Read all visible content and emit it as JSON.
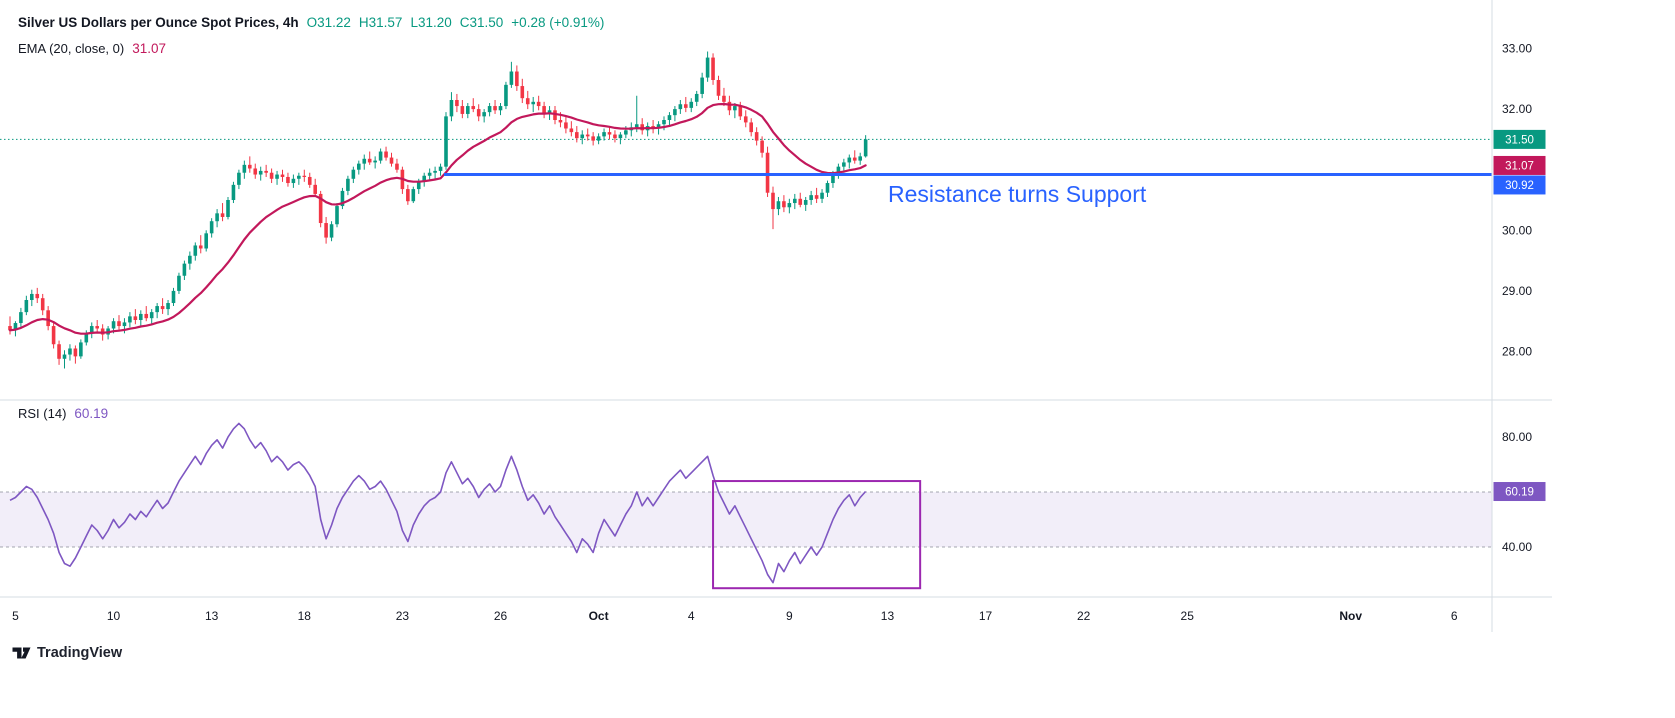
{
  "header": {
    "symbol_title": "Silver US Dollars per Ounce Spot Prices, 4h",
    "open": "O31.22",
    "high": "H31.57",
    "low": "L31.20",
    "close": "C31.50",
    "change": "+0.28 (+0.91%)",
    "ema_label": "EMA (20, close, 0)",
    "ema_value": "31.07"
  },
  "rsi_header": {
    "label": "RSI (14)",
    "value": "60.19"
  },
  "annotation": {
    "text": "Resistance turns Support",
    "color": "#2962ff"
  },
  "badges": {
    "last_price": "31.50",
    "ema": "31.07",
    "support": "30.92",
    "rsi": "60.19"
  },
  "footer": {
    "brand": "TradingView"
  },
  "colors": {
    "up": "#089981",
    "down": "#f23645",
    "ema": "#c2185b",
    "support": "#2962ff",
    "rsi": "#7e57c2",
    "rsi_box": "#9c27b0",
    "band_fill": "rgba(126,87,194,0.10)",
    "band_line": "#787b86",
    "axis_text": "#131722",
    "divider": "#d6dce3",
    "badge_text": "#ffffff"
  },
  "chart_data": [
    {
      "type": "candlestick",
      "name": "Silver US Dollars per Ounce Spot Prices, 4h",
      "timeframe": "4h",
      "last": {
        "open": 31.22,
        "high": 31.57,
        "low": 31.2,
        "close": 31.5,
        "change": 0.28,
        "change_pct": 0.91
      },
      "ylim": [
        27.2,
        33.8
      ],
      "y_ticks": [
        33,
        32,
        30,
        29,
        28
      ],
      "grid": false,
      "ema": {
        "label": "EMA (20, close, 0)",
        "period": 20,
        "value": 31.07
      },
      "support_line": {
        "price": 30.92,
        "start_index": 80,
        "label": "Resistance turns Support"
      },
      "last_price_line": {
        "price": 31.5
      },
      "x_labels": [
        {
          "t": "5",
          "i": 1
        },
        {
          "t": "10",
          "i": 19
        },
        {
          "t": "13",
          "i": 37
        },
        {
          "t": "18",
          "i": 54
        },
        {
          "t": "23",
          "i": 72
        },
        {
          "t": "26",
          "i": 90
        },
        {
          "t": "Oct",
          "i": 108,
          "b": 1
        },
        {
          "t": "4",
          "i": 125
        },
        {
          "t": "9",
          "i": 143
        },
        {
          "t": "13",
          "i": 161
        },
        {
          "t": "17",
          "i": 179
        },
        {
          "t": "22",
          "i": 197
        },
        {
          "t": "25",
          "i": 216
        },
        {
          "t": "Nov",
          "i": 246,
          "b": 1
        },
        {
          "t": "6",
          "i": 265
        }
      ],
      "candles": [
        [
          28.42,
          28.58,
          28.28,
          28.35
        ],
        [
          28.35,
          28.5,
          28.25,
          28.47
        ],
        [
          28.47,
          28.72,
          28.4,
          28.65
        ],
        [
          28.65,
          28.92,
          28.6,
          28.85
        ],
        [
          28.85,
          29.02,
          28.75,
          28.95
        ],
        [
          28.95,
          29.05,
          28.8,
          28.88
        ],
        [
          28.88,
          28.95,
          28.6,
          28.68
        ],
        [
          28.68,
          28.75,
          28.35,
          28.42
        ],
        [
          28.42,
          28.48,
          28.05,
          28.12
        ],
        [
          28.12,
          28.18,
          27.78,
          27.88
        ],
        [
          27.88,
          28.02,
          27.72,
          27.95
        ],
        [
          27.95,
          28.12,
          27.85,
          28.05
        ],
        [
          28.05,
          28.1,
          27.8,
          27.92
        ],
        [
          27.92,
          28.2,
          27.88,
          28.15
        ],
        [
          28.15,
          28.35,
          28.1,
          28.3
        ],
        [
          28.3,
          28.48,
          28.22,
          28.42
        ],
        [
          28.42,
          28.52,
          28.3,
          28.38
        ],
        [
          28.38,
          28.45,
          28.18,
          28.28
        ],
        [
          28.28,
          28.42,
          28.2,
          28.38
        ],
        [
          28.38,
          28.55,
          28.3,
          28.5
        ],
        [
          28.5,
          28.6,
          28.35,
          28.42
        ],
        [
          28.42,
          28.55,
          28.3,
          28.48
        ],
        [
          28.48,
          28.65,
          28.4,
          28.58
        ],
        [
          28.58,
          28.7,
          28.45,
          28.52
        ],
        [
          28.52,
          28.68,
          28.42,
          28.62
        ],
        [
          28.62,
          28.75,
          28.5,
          28.55
        ],
        [
          28.55,
          28.7,
          28.45,
          28.65
        ],
        [
          28.65,
          28.8,
          28.55,
          28.75
        ],
        [
          28.75,
          28.88,
          28.62,
          28.7
        ],
        [
          28.7,
          28.85,
          28.6,
          28.8
        ],
        [
          28.8,
          29.05,
          28.75,
          29.0
        ],
        [
          29.0,
          29.3,
          28.95,
          29.25
        ],
        [
          29.25,
          29.5,
          29.18,
          29.45
        ],
        [
          29.45,
          29.65,
          29.35,
          29.58
        ],
        [
          29.58,
          29.8,
          29.5,
          29.75
        ],
        [
          29.75,
          29.92,
          29.62,
          29.7
        ],
        [
          29.7,
          30.0,
          29.65,
          29.95
        ],
        [
          29.95,
          30.2,
          29.88,
          30.15
        ],
        [
          30.15,
          30.35,
          30.05,
          30.28
        ],
        [
          30.28,
          30.45,
          30.15,
          30.22
        ],
        [
          30.22,
          30.55,
          30.18,
          30.5
        ],
        [
          30.5,
          30.8,
          30.45,
          30.75
        ],
        [
          30.75,
          31.0,
          30.68,
          30.95
        ],
        [
          30.95,
          31.15,
          30.85,
          31.08
        ],
        [
          31.08,
          31.22,
          30.95,
          31.02
        ],
        [
          31.02,
          31.1,
          30.85,
          30.92
        ],
        [
          30.92,
          31.05,
          30.82,
          30.98
        ],
        [
          30.98,
          31.08,
          30.88,
          30.95
        ],
        [
          30.95,
          31.02,
          30.78,
          30.85
        ],
        [
          30.85,
          30.98,
          30.75,
          30.92
        ],
        [
          30.92,
          31.0,
          30.8,
          30.88
        ],
        [
          30.88,
          30.95,
          30.72,
          30.78
        ],
        [
          30.78,
          30.92,
          30.7,
          30.85
        ],
        [
          30.85,
          30.95,
          30.75,
          30.9
        ],
        [
          30.9,
          31.0,
          30.8,
          30.88
        ],
        [
          30.88,
          30.95,
          30.7,
          30.75
        ],
        [
          30.75,
          30.85,
          30.55,
          30.6
        ],
        [
          30.6,
          30.65,
          30.05,
          30.12
        ],
        [
          30.12,
          30.22,
          29.78,
          29.88
        ],
        [
          29.88,
          30.15,
          29.82,
          30.1
        ],
        [
          30.1,
          30.45,
          30.05,
          30.4
        ],
        [
          30.4,
          30.7,
          30.35,
          30.65
        ],
        [
          30.65,
          30.9,
          30.58,
          30.85
        ],
        [
          30.85,
          31.05,
          30.78,
          31.0
        ],
        [
          31.0,
          31.15,
          30.92,
          31.1
        ],
        [
          31.1,
          31.25,
          31.0,
          31.18
        ],
        [
          31.18,
          31.3,
          31.08,
          31.12
        ],
        [
          31.12,
          31.22,
          31.02,
          31.15
        ],
        [
          31.15,
          31.35,
          31.1,
          31.3
        ],
        [
          31.3,
          31.38,
          31.15,
          31.2
        ],
        [
          31.2,
          31.28,
          31.05,
          31.1
        ],
        [
          31.1,
          31.18,
          30.95,
          31.0
        ],
        [
          31.0,
          31.05,
          30.6,
          30.68
        ],
        [
          30.68,
          30.75,
          30.42,
          30.48
        ],
        [
          30.48,
          30.72,
          30.45,
          30.68
        ],
        [
          30.68,
          30.85,
          30.6,
          30.8
        ],
        [
          30.8,
          30.95,
          30.72,
          30.9
        ],
        [
          30.9,
          31.02,
          30.82,
          30.95
        ],
        [
          30.95,
          31.05,
          30.85,
          30.98
        ],
        [
          30.98,
          31.1,
          30.9,
          31.05
        ],
        [
          31.05,
          31.95,
          31.0,
          31.88
        ],
        [
          31.88,
          32.28,
          31.8,
          32.15
        ],
        [
          32.15,
          32.25,
          31.95,
          32.05
        ],
        [
          32.05,
          32.15,
          31.85,
          31.92
        ],
        [
          31.92,
          32.1,
          31.85,
          32.05
        ],
        [
          32.05,
          32.18,
          31.95,
          32.0
        ],
        [
          32.0,
          32.08,
          31.8,
          31.88
        ],
        [
          31.88,
          32.0,
          31.78,
          31.95
        ],
        [
          31.95,
          32.1,
          31.88,
          32.05
        ],
        [
          32.05,
          32.15,
          31.92,
          31.98
        ],
        [
          31.98,
          32.1,
          31.9,
          32.05
        ],
        [
          32.05,
          32.45,
          32.0,
          32.4
        ],
        [
          32.4,
          32.78,
          32.35,
          32.62
        ],
        [
          32.62,
          32.72,
          32.3,
          32.38
        ],
        [
          32.38,
          32.5,
          32.1,
          32.18
        ],
        [
          32.18,
          32.3,
          32.0,
          32.08
        ],
        [
          32.08,
          32.2,
          31.95,
          32.12
        ],
        [
          32.12,
          32.22,
          31.98,
          32.05
        ],
        [
          32.05,
          32.12,
          31.85,
          31.92
        ],
        [
          31.92,
          32.05,
          31.82,
          31.98
        ],
        [
          31.98,
          32.05,
          31.75,
          31.82
        ],
        [
          31.82,
          31.95,
          31.7,
          31.78
        ],
        [
          31.78,
          31.88,
          31.6,
          31.68
        ],
        [
          31.68,
          31.8,
          31.55,
          31.62
        ],
        [
          31.62,
          31.72,
          31.45,
          31.52
        ],
        [
          31.52,
          31.65,
          31.42,
          31.58
        ],
        [
          31.58,
          31.68,
          31.48,
          31.55
        ],
        [
          31.55,
          31.62,
          31.4,
          31.48
        ],
        [
          31.48,
          31.6,
          31.42,
          31.55
        ],
        [
          31.55,
          31.68,
          31.48,
          31.62
        ],
        [
          31.62,
          31.7,
          31.5,
          31.58
        ],
        [
          31.58,
          31.65,
          31.45,
          31.52
        ],
        [
          31.52,
          31.62,
          31.42,
          31.58
        ],
        [
          31.58,
          31.72,
          31.52,
          31.65
        ],
        [
          31.65,
          31.78,
          31.55,
          31.7
        ],
        [
          31.7,
          32.22,
          31.62,
          31.75
        ],
        [
          31.75,
          31.85,
          31.58,
          31.65
        ],
        [
          31.65,
          31.78,
          31.55,
          31.72
        ],
        [
          31.72,
          31.82,
          31.6,
          31.68
        ],
        [
          31.68,
          31.8,
          31.58,
          31.75
        ],
        [
          31.75,
          31.88,
          31.65,
          31.82
        ],
        [
          31.82,
          31.95,
          31.72,
          31.9
        ],
        [
          31.9,
          32.05,
          31.8,
          32.0
        ],
        [
          32.0,
          32.15,
          31.92,
          32.08
        ],
        [
          32.08,
          32.2,
          31.95,
          32.02
        ],
        [
          32.02,
          32.18,
          31.95,
          32.12
        ],
        [
          32.12,
          32.3,
          32.05,
          32.25
        ],
        [
          32.25,
          32.6,
          32.18,
          32.52
        ],
        [
          32.52,
          32.95,
          32.45,
          32.85
        ],
        [
          32.85,
          32.92,
          32.4,
          32.48
        ],
        [
          32.48,
          32.55,
          32.15,
          32.22
        ],
        [
          32.22,
          32.35,
          32.05,
          32.12
        ],
        [
          32.12,
          32.22,
          31.9,
          31.98
        ],
        [
          31.98,
          32.1,
          31.85,
          32.05
        ],
        [
          32.05,
          32.12,
          31.82,
          31.88
        ],
        [
          31.88,
          31.98,
          31.7,
          31.78
        ],
        [
          31.78,
          31.85,
          31.55,
          31.62
        ],
        [
          31.62,
          31.7,
          31.4,
          31.48
        ],
        [
          31.48,
          31.55,
          31.2,
          31.28
        ],
        [
          31.28,
          31.38,
          30.55,
          30.62
        ],
        [
          30.62,
          30.72,
          30.02,
          30.35
        ],
        [
          30.35,
          30.55,
          30.25,
          30.48
        ],
        [
          30.48,
          30.58,
          30.3,
          30.38
        ],
        [
          30.38,
          30.52,
          30.28,
          30.45
        ],
        [
          30.45,
          30.6,
          30.35,
          30.52
        ],
        [
          30.52,
          30.62,
          30.38,
          30.42
        ],
        [
          30.42,
          30.55,
          30.32,
          30.5
        ],
        [
          30.5,
          30.65,
          30.42,
          30.58
        ],
        [
          30.58,
          30.7,
          30.45,
          30.52
        ],
        [
          30.52,
          30.68,
          30.45,
          30.62
        ],
        [
          30.62,
          30.82,
          30.55,
          30.78
        ],
        [
          30.78,
          30.98,
          30.7,
          30.92
        ],
        [
          30.92,
          31.1,
          30.85,
          31.05
        ],
        [
          31.05,
          31.18,
          30.95,
          31.12
        ],
        [
          31.12,
          31.25,
          31.02,
          31.2
        ],
        [
          31.2,
          31.32,
          31.1,
          31.15
        ],
        [
          31.15,
          31.28,
          31.08,
          31.22
        ],
        [
          31.22,
          31.57,
          31.2,
          31.5
        ]
      ]
    },
    {
      "type": "line",
      "name": "RSI (14)",
      "value": 60.19,
      "ylim": [
        21.8,
        93.5
      ],
      "y_ticks": [
        80,
        40
      ],
      "band": {
        "upper": 60,
        "lower": 40
      },
      "highlight_box": {
        "start_index": 129,
        "end_index": 167,
        "min": 25,
        "max": 64
      },
      "values": [
        57,
        58,
        60,
        62,
        61,
        58,
        54,
        50,
        45,
        38,
        34,
        33,
        36,
        40,
        44,
        48,
        46,
        43,
        46,
        50,
        47,
        49,
        52,
        50,
        53,
        51,
        54,
        57,
        54,
        56,
        60,
        64,
        67,
        70,
        73,
        70,
        74,
        77,
        79,
        76,
        80,
        83,
        85,
        83,
        79,
        76,
        78,
        75,
        71,
        73,
        71,
        68,
        70,
        71,
        69,
        66,
        62,
        50,
        43,
        48,
        54,
        58,
        61,
        64,
        66,
        64,
        61,
        62,
        64,
        61,
        57,
        53,
        46,
        42,
        48,
        52,
        55,
        57,
        58,
        60,
        67,
        71,
        67,
        63,
        65,
        62,
        58,
        61,
        63,
        60,
        62,
        68,
        73,
        68,
        62,
        57,
        59,
        56,
        52,
        55,
        51,
        48,
        45,
        42,
        38,
        43,
        41,
        38,
        45,
        50,
        47,
        44,
        48,
        52,
        55,
        60,
        55,
        58,
        55,
        58,
        61,
        64,
        66,
        68,
        65,
        67,
        69,
        71,
        73,
        66,
        60,
        56,
        52,
        55,
        51,
        47,
        43,
        39,
        35,
        30,
        27,
        34,
        31,
        35,
        38,
        34,
        37,
        40,
        37,
        40,
        45,
        50,
        54,
        57,
        59,
        55,
        58,
        60.19
      ]
    }
  ]
}
